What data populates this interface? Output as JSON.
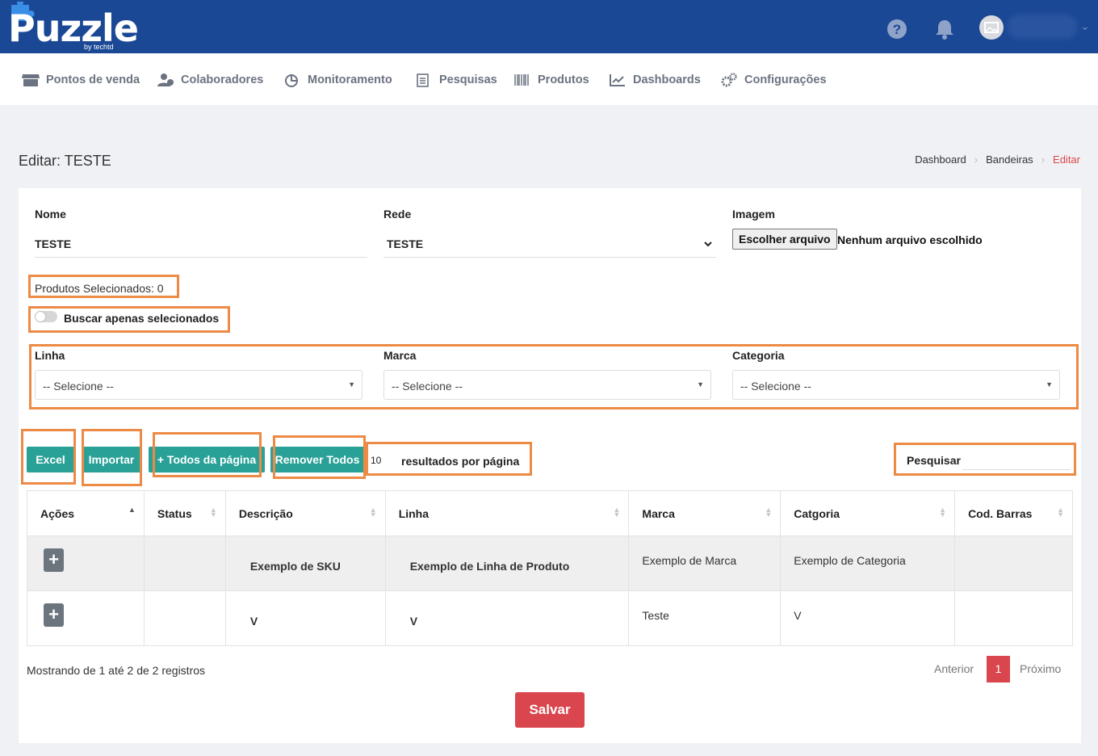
{
  "brand": {
    "name": "Puzzle",
    "sub": "by techtd"
  },
  "topbar": {
    "user_name": ""
  },
  "nav": [
    {
      "label": "Pontos de venda",
      "icon": "store-icon"
    },
    {
      "label": "Colaboradores",
      "icon": "users-icon"
    },
    {
      "label": "Monitoramento",
      "icon": "pie-chart-icon"
    },
    {
      "label": "Pesquisas",
      "icon": "clipboard-icon"
    },
    {
      "label": "Produtos",
      "icon": "barcode-icon"
    },
    {
      "label": "Dashboards",
      "icon": "line-chart-icon"
    },
    {
      "label": "Configurações",
      "icon": "gears-icon"
    }
  ],
  "page": {
    "title": "Editar: TESTE"
  },
  "breadcrumb": [
    "Dashboard",
    "Bandeiras",
    "Editar"
  ],
  "form": {
    "nome_label": "Nome",
    "nome_value": "TESTE",
    "rede_label": "Rede",
    "rede_value": "TESTE",
    "imagem_label": "Imagem",
    "file_button": "Escolher arquivo",
    "file_status": "Nenhum arquivo escolhido"
  },
  "selected": {
    "count_text": "Produtos Selecionados: 0",
    "toggle_label": "Buscar apenas selecionados",
    "toggle_on": false
  },
  "filters": [
    {
      "label": "Linha",
      "value": "-- Selecione --"
    },
    {
      "label": "Marca",
      "value": "-- Selecione --"
    },
    {
      "label": "Categoria",
      "value": "-- Selecione --"
    }
  ],
  "actions": {
    "excel": "Excel",
    "importar": "Importar",
    "todos": "+ Todos da página",
    "remover": "Remover Todos"
  },
  "length": {
    "value": "10",
    "label": "resultados por página"
  },
  "search": {
    "label": "Pesquisar",
    "value": ""
  },
  "table": {
    "headers": [
      "Ações",
      "Status",
      "Descrição",
      "Linha",
      "Marca",
      "Catgoria",
      "Cod. Barras"
    ],
    "rows": [
      {
        "status": "",
        "descricao": "Exemplo de SKU",
        "linha": "Exemplo de Linha de Produto",
        "marca": "Exemplo de Marca",
        "categoria": "Exemplo de Categoria",
        "cod_barras": ""
      },
      {
        "status": "",
        "descricao": "V",
        "linha": "V",
        "marca": "Teste",
        "categoria": "V",
        "cod_barras": ""
      }
    ]
  },
  "footer": {
    "info": "Mostrando de 1 até 2 de 2 registros",
    "prev": "Anterior",
    "current": "1",
    "next": "Próximo",
    "save": "Salvar"
  },
  "colors": {
    "topbar": "#1b4895",
    "accent": "#2aa197",
    "danger": "#d9464d",
    "highlight": "#ed8a45"
  }
}
